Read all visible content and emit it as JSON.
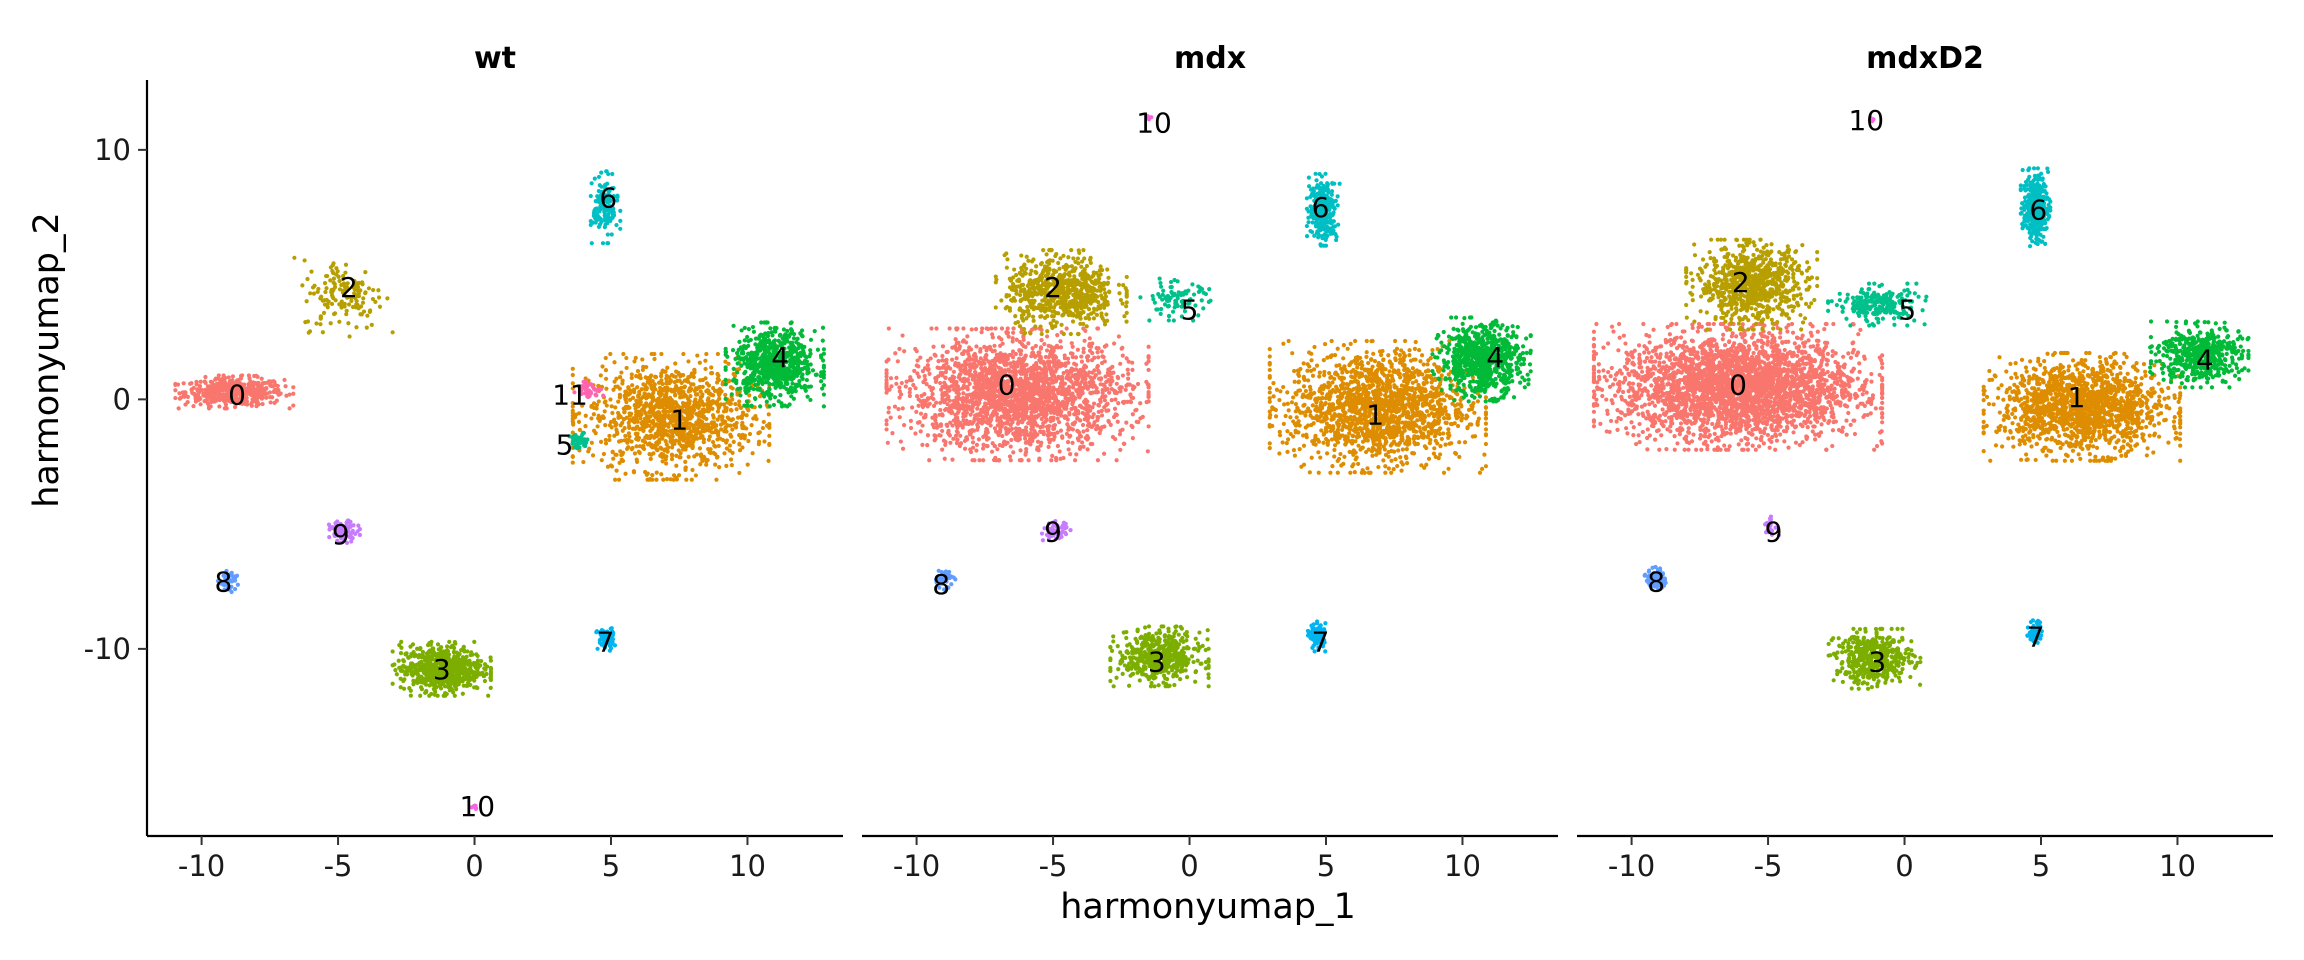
{
  "chart_data": {
    "type": "scatter",
    "xlabel": "harmonyumap_1",
    "ylabel": "harmonyumap_2",
    "xlim": [
      -12,
      13.5
    ],
    "ylim": [
      -17.5,
      12.8
    ],
    "xticks": [
      -10,
      -5,
      0,
      5,
      10
    ],
    "xtick_labels": [
      "-10",
      "-5",
      "0",
      "5",
      "10"
    ],
    "yticks": [
      -10,
      0,
      10
    ],
    "ytick_labels": [
      "-10",
      "0",
      "10"
    ],
    "legend": "none",
    "colors": {
      "0": "#F8766D",
      "1": "#DE8C00",
      "2": "#B79F00",
      "3": "#7CAE00",
      "4": "#00BA38",
      "5": "#00C08B",
      "6": "#00BFC4",
      "7": "#00B4F0",
      "8": "#619CFF",
      "9": "#C77CFF",
      "10": "#F564E3",
      "11": "#FF64B0"
    },
    "panels": [
      {
        "title": "wt",
        "clusters": [
          {
            "id": "0",
            "label": "0",
            "cx": -8.8,
            "cy": 0.3,
            "rx": 1.8,
            "ry": 0.55,
            "n": 500,
            "label_x": -8.7,
            "label_y": 0.2
          },
          {
            "id": "1",
            "label": "1",
            "cx": 7.2,
            "cy": -0.7,
            "rx": 3.0,
            "ry": 2.1,
            "n": 1200,
            "label_x": 7.5,
            "label_y": -0.8
          },
          {
            "id": "2",
            "label": "2",
            "cx": -4.8,
            "cy": 4.2,
            "rx": 1.5,
            "ry": 1.4,
            "n": 150,
            "label_x": -4.6,
            "label_y": 4.5
          },
          {
            "id": "3",
            "label": "3",
            "cx": -1.2,
            "cy": -10.8,
            "rx": 1.5,
            "ry": 0.9,
            "n": 700,
            "label_x": -1.2,
            "label_y": -10.8
          },
          {
            "id": "4",
            "label": "4",
            "cx": 11.0,
            "cy": 1.4,
            "rx": 1.5,
            "ry": 1.4,
            "n": 700,
            "label_x": 11.2,
            "label_y": 1.7
          },
          {
            "id": "5",
            "label": "5",
            "cx": 3.8,
            "cy": -1.7,
            "rx": 0.4,
            "ry": 0.3,
            "n": 35,
            "label_x": 3.3,
            "label_y": -1.8
          },
          {
            "id": "6",
            "label": "6",
            "cx": 4.8,
            "cy": 7.7,
            "rx": 0.45,
            "ry": 1.2,
            "n": 150,
            "label_x": 4.9,
            "label_y": 8.1
          },
          {
            "id": "7",
            "label": "7",
            "cx": 4.8,
            "cy": -9.6,
            "rx": 0.3,
            "ry": 0.45,
            "n": 70,
            "label_x": 4.8,
            "label_y": -9.7
          },
          {
            "id": "8",
            "label": "8",
            "cx": -9.0,
            "cy": -7.3,
            "rx": 0.35,
            "ry": 0.35,
            "n": 45,
            "label_x": -9.2,
            "label_y": -7.3
          },
          {
            "id": "9",
            "label": "9",
            "cx": -4.8,
            "cy": -5.3,
            "rx": 0.5,
            "ry": 0.4,
            "n": 90,
            "label_x": -4.9,
            "label_y": -5.4
          },
          {
            "id": "10",
            "label": "10",
            "cx": 0.0,
            "cy": -16.3,
            "rx": 0.12,
            "ry": 0.1,
            "n": 8,
            "label_x": 0.1,
            "label_y": -16.3
          },
          {
            "id": "11",
            "label": "11",
            "cx": 4.2,
            "cy": 0.4,
            "rx": 0.45,
            "ry": 0.35,
            "n": 40,
            "label_x": 3.5,
            "label_y": 0.2
          }
        ]
      },
      {
        "title": "mdx",
        "clusters": [
          {
            "id": "0",
            "label": "0",
            "cx": -6.3,
            "cy": 0.2,
            "rx": 4.0,
            "ry": 2.2,
            "n": 2200,
            "label_x": -6.7,
            "label_y": 0.6
          },
          {
            "id": "1",
            "label": "1",
            "cx": 6.9,
            "cy": -0.3,
            "rx": 3.3,
            "ry": 2.2,
            "n": 1600,
            "label_x": 6.8,
            "label_y": -0.6
          },
          {
            "id": "2",
            "label": "2",
            "cx": -4.7,
            "cy": 4.3,
            "rx": 2.0,
            "ry": 1.4,
            "n": 700,
            "label_x": -5.0,
            "label_y": 4.5
          },
          {
            "id": "3",
            "label": "3",
            "cx": -1.1,
            "cy": -10.3,
            "rx": 1.5,
            "ry": 1.0,
            "n": 500,
            "label_x": -1.2,
            "label_y": -10.5
          },
          {
            "id": "4",
            "label": "4",
            "cx": 10.7,
            "cy": 1.6,
            "rx": 1.5,
            "ry": 1.4,
            "n": 700,
            "label_x": 11.2,
            "label_y": 1.7
          },
          {
            "id": "5",
            "label": "5",
            "cx": -0.5,
            "cy": 4.0,
            "rx": 1.2,
            "ry": 0.7,
            "n": 90,
            "label_x": 0.0,
            "label_y": 3.6
          },
          {
            "id": "6",
            "label": "6",
            "cx": 4.9,
            "cy": 7.6,
            "rx": 0.5,
            "ry": 1.2,
            "n": 300,
            "label_x": 4.8,
            "label_y": 7.7
          },
          {
            "id": "7",
            "label": "7",
            "cx": 4.7,
            "cy": -9.5,
            "rx": 0.3,
            "ry": 0.5,
            "n": 80,
            "label_x": 4.8,
            "label_y": -9.7
          },
          {
            "id": "8",
            "label": "8",
            "cx": -9.0,
            "cy": -7.2,
            "rx": 0.35,
            "ry": 0.35,
            "n": 50,
            "label_x": -9.1,
            "label_y": -7.4
          },
          {
            "id": "9",
            "label": "9",
            "cx": -4.9,
            "cy": -5.3,
            "rx": 0.45,
            "ry": 0.35,
            "n": 60,
            "label_x": -5.0,
            "label_y": -5.3
          },
          {
            "id": "10",
            "label": "10",
            "cx": -1.5,
            "cy": 11.3,
            "rx": 0.1,
            "ry": 0.1,
            "n": 6,
            "label_x": -1.3,
            "label_y": 11.1
          }
        ]
      },
      {
        "title": "mdxD2",
        "clusters": [
          {
            "id": "0",
            "label": "0",
            "cx": -6.1,
            "cy": 0.5,
            "rx": 4.4,
            "ry": 2.1,
            "n": 3000,
            "label_x": -6.1,
            "label_y": 0.6
          },
          {
            "id": "1",
            "label": "1",
            "cx": 6.5,
            "cy": -0.3,
            "rx": 3.0,
            "ry": 1.8,
            "n": 1500,
            "label_x": 6.3,
            "label_y": 0.1
          },
          {
            "id": "2",
            "label": "2",
            "cx": -5.6,
            "cy": 4.6,
            "rx": 2.0,
            "ry": 1.5,
            "n": 800,
            "label_x": -6.0,
            "label_y": 4.7
          },
          {
            "id": "3",
            "label": "3",
            "cx": -1.1,
            "cy": -10.4,
            "rx": 1.4,
            "ry": 1.0,
            "n": 450,
            "label_x": -1.0,
            "label_y": -10.5
          },
          {
            "id": "4",
            "label": "4",
            "cx": 10.8,
            "cy": 1.8,
            "rx": 1.5,
            "ry": 1.1,
            "n": 500,
            "label_x": 11.0,
            "label_y": 1.6
          },
          {
            "id": "5",
            "label": "5",
            "cx": -1.0,
            "cy": 3.8,
            "rx": 1.5,
            "ry": 0.7,
            "n": 220,
            "label_x": 0.1,
            "label_y": 3.6
          },
          {
            "id": "6",
            "label": "6",
            "cx": 4.8,
            "cy": 7.7,
            "rx": 0.45,
            "ry": 1.3,
            "n": 350,
            "label_x": 4.9,
            "label_y": 7.6
          },
          {
            "id": "7",
            "label": "7",
            "cx": 4.8,
            "cy": -9.3,
            "rx": 0.25,
            "ry": 0.5,
            "n": 50,
            "label_x": 4.8,
            "label_y": -9.5
          },
          {
            "id": "8",
            "label": "8",
            "cx": -9.1,
            "cy": -7.2,
            "rx": 0.35,
            "ry": 0.4,
            "n": 80,
            "label_x": -9.1,
            "label_y": -7.3
          },
          {
            "id": "9",
            "label": "9",
            "cx": -4.9,
            "cy": -5.1,
            "rx": 0.25,
            "ry": 0.4,
            "n": 20,
            "label_x": -4.8,
            "label_y": -5.3
          },
          {
            "id": "10",
            "label": "10",
            "cx": -1.2,
            "cy": 11.2,
            "rx": 0.1,
            "ry": 0.1,
            "n": 6,
            "label_x": -1.4,
            "label_y": 11.2
          }
        ]
      }
    ]
  }
}
